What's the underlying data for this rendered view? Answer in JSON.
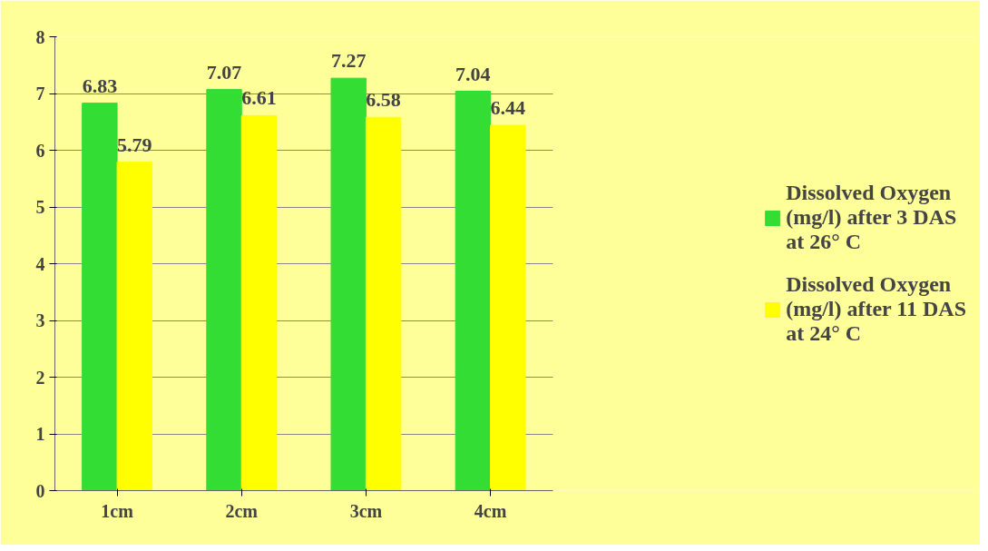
{
  "chart_data": {
    "type": "bar",
    "categories": [
      "1cm",
      "2cm",
      "3cm",
      "4cm"
    ],
    "series": [
      {
        "name": "Dissolved Oxygen (mg/l) after 3 DAS at 26° C",
        "color": "#33dd33",
        "values": [
          6.83,
          7.07,
          7.27,
          7.04
        ]
      },
      {
        "name": "Dissolved Oxygen (mg/l) after 11 DAS at 24° C",
        "color": "#ffff00",
        "values": [
          5.79,
          6.61,
          6.58,
          6.44
        ]
      }
    ],
    "ylim": [
      0,
      8
    ],
    "yticks": [
      0,
      1,
      2,
      3,
      4,
      5,
      6,
      7,
      8
    ],
    "grid": "y",
    "legend": "right",
    "data_labels": true
  }
}
